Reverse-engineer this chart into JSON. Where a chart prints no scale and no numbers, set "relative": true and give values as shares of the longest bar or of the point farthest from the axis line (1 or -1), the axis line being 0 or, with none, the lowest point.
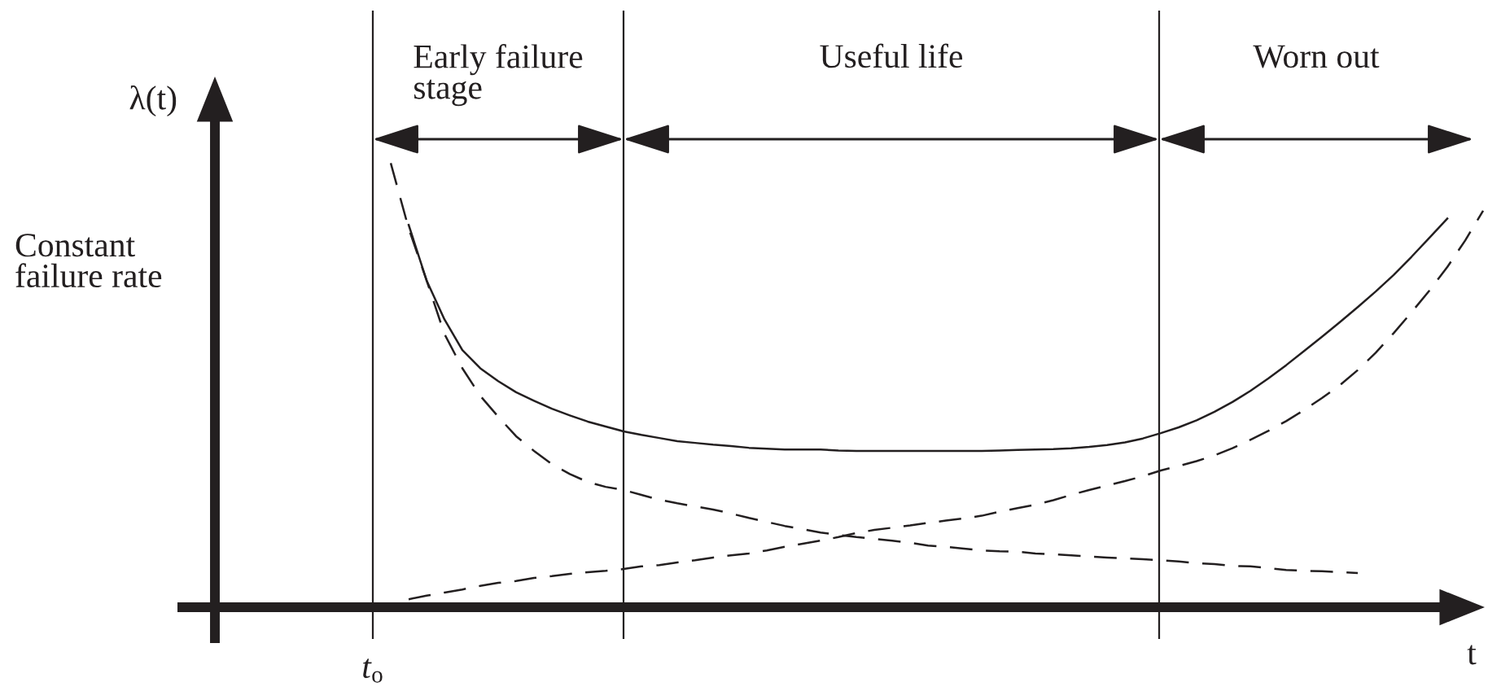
{
  "chart_data": {
    "type": "line",
    "relative": true,
    "xlabel": "t",
    "grid": "x",
    "categories": [
      null,
      null,
      null,
      null,
      null,
      null,
      null,
      null,
      null,
      null,
      null,
      null,
      null,
      null,
      null,
      null,
      null,
      null,
      null,
      null,
      null,
      null,
      null,
      null,
      null,
      null,
      null,
      null,
      null,
      null,
      null,
      null,
      null,
      null,
      null,
      null,
      null,
      null,
      null,
      null,
      null,
      null,
      null,
      null,
      null,
      null,
      null,
      null,
      null,
      null,
      null,
      null,
      null,
      null,
      null,
      null,
      null,
      null,
      null,
      null,
      null,
      null,
      null
    ],
    "series": [
      {
        "color": "#231f20",
        "line_style": "solid",
        "values": [
          null,
          null,
          0.861,
          0.736,
          0.648,
          0.579,
          0.538,
          0.509,
          0.484,
          0.465,
          0.447,
          0.432,
          0.418,
          0.407,
          0.396,
          0.388,
          0.381,
          0.374,
          0.37,
          0.366,
          0.363,
          0.359,
          0.357,
          0.355,
          0.355,
          0.355,
          0.353,
          0.352,
          0.352,
          0.352,
          0.352,
          0.352,
          0.352,
          0.352,
          0.352,
          0.353,
          0.354,
          0.355,
          0.356,
          0.358,
          0.361,
          0.365,
          0.371,
          0.38,
          0.392,
          0.405,
          0.421,
          0.44,
          0.462,
          0.487,
          0.515,
          0.545,
          0.577,
          0.609,
          0.642,
          0.676,
          0.711,
          0.748,
          0.789,
          0.832,
          0.875,
          null,
          null
        ]
      },
      {
        "color": "#231f20",
        "line_style": "dashed",
        "values": [
          null,
          1.0,
          0.853,
          0.736,
          0.615,
          0.538,
          0.476,
          0.429,
          0.385,
          0.352,
          0.322,
          0.3,
          0.282,
          0.271,
          0.264,
          0.253,
          0.242,
          0.234,
          0.227,
          0.22,
          0.211,
          0.201,
          0.192,
          0.183,
          0.176,
          0.168,
          0.163,
          0.158,
          0.154,
          0.15,
          0.145,
          0.139,
          0.136,
          0.132,
          0.128,
          0.126,
          0.125,
          0.121,
          0.119,
          0.117,
          0.114,
          0.112,
          0.11,
          0.108,
          0.106,
          0.103,
          0.099,
          0.097,
          0.093,
          0.092,
          0.088,
          0.084,
          0.082,
          0.081,
          0.079,
          0.077,
          null,
          null,
          null,
          null,
          null,
          null,
          null
        ]
      },
      {
        "color": "#231f20",
        "line_style": "dashed",
        "values": [
          null,
          null,
          0.018,
          0.026,
          0.033,
          0.04,
          0.048,
          0.055,
          0.059,
          0.066,
          0.07,
          0.075,
          0.079,
          0.082,
          0.086,
          0.092,
          0.095,
          0.101,
          0.106,
          0.112,
          0.117,
          0.121,
          0.128,
          0.136,
          0.143,
          0.15,
          0.158,
          0.167,
          0.174,
          0.179,
          0.184,
          0.19,
          0.195,
          0.2,
          0.206,
          0.215,
          0.223,
          0.231,
          0.241,
          0.253,
          0.264,
          0.274,
          0.284,
          0.295,
          0.308,
          0.318,
          0.329,
          0.342,
          0.358,
          0.377,
          0.397,
          0.419,
          0.444,
          0.471,
          0.5,
          0.534,
          0.573,
          0.617,
          0.664,
          0.713,
          0.766,
          0.826,
          0.893
        ]
      }
    ],
    "annotations": [
      "Early failure stage",
      "Useful life",
      "Worn out",
      "λ(t)",
      "Constant failure rate",
      "t$_{o}$"
    ]
  }
}
